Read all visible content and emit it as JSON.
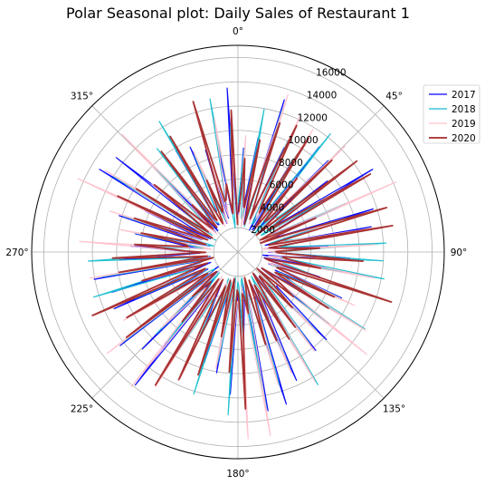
{
  "chart_data": {
    "type": "line",
    "projection": "polar",
    "title": "Polar Seasonal plot: Daily Sales of Restaurant 1",
    "theta_zero_location": "top",
    "theta_direction": "clockwise",
    "angle_ticks": [
      "0°",
      "45°",
      "90°",
      "135°",
      "180°",
      "225°",
      "270°",
      "315°"
    ],
    "radial_ticks": [
      "2000",
      "4000",
      "6000",
      "8000",
      "10000",
      "12000",
      "14000",
      "16000"
    ],
    "rlim": [
      0,
      17000
    ],
    "grid": true,
    "legend_placement": "upper-right",
    "spikes_per_cycle": 52,
    "x_unit": "day of year (angle)",
    "series": [
      {
        "name": "2017",
        "color": "#0000ff",
        "peak_range": [
          6500,
          14000
        ]
      },
      {
        "name": "2018",
        "color": "#17becf",
        "peak_range": [
          6500,
          13500
        ]
      },
      {
        "name": "2019",
        "color": "#ffc0cb",
        "peak_range": [
          7000,
          15500
        ]
      },
      {
        "name": "2020",
        "color": "#a52a2a",
        "peak_range": [
          5000,
          13500
        ]
      }
    ]
  }
}
